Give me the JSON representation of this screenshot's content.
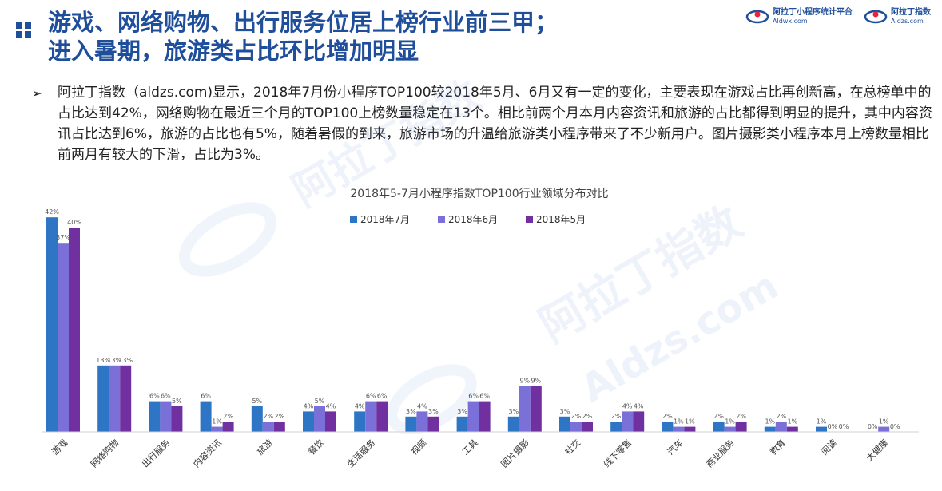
{
  "header": {
    "title_line1": "游戏、网络购物、出行服务位居上榜行业前三甲；",
    "title_line2": "进入暑期，旅游类占比环比增加明显",
    "logos": [
      {
        "name": "阿拉丁小程序统计平台",
        "domain": "Aldwx.com"
      },
      {
        "name": "阿拉丁指数",
        "domain": "Aldzs.com"
      }
    ]
  },
  "body": {
    "bullet": "➢",
    "description": "阿拉丁指数（aldzs.com)显示，2018年7月份小程序TOP100较2018年5月、6月又有一定的变化，主要表现在游戏占比再创新高，在总榜单中的占比达到42%，网络购物在最近三个月的TOP100上榜数量稳定在13个。相比前两个月本月内容资讯和旅游的占比都得到明显的提升，其中内容资讯占比达到6%，旅游的占比也有5%，随着暑假的到来，旅游市场的升温给旅游类小程序带来了不少新用户。图片摄影类小程序本月上榜数量相比前两月有较大的下滑，占比为3%。"
  },
  "watermark": {
    "text1": "阿拉丁指数",
    "text2": "Aldzs.com"
  },
  "chart_data": {
    "type": "bar",
    "title": "2018年5-7月小程序指数TOP100行业领域分布对比",
    "categories": [
      "游戏",
      "网络购物",
      "出行服务",
      "内容资讯",
      "旅游",
      "餐饮",
      "生活服务",
      "视频",
      "工具",
      "图片摄影",
      "社交",
      "线下零售",
      "汽车",
      "商业服务",
      "教育",
      "阅读",
      "大健康"
    ],
    "series": [
      {
        "name": "2018年7月",
        "color": "#2e75c5",
        "values": [
          42,
          13,
          6,
          6,
          5,
          4,
          4,
          3,
          3,
          3,
          3,
          2,
          2,
          2,
          1,
          1,
          0
        ]
      },
      {
        "name": "2018年6月",
        "color": "#7b6fd8",
        "values": [
          37,
          13,
          6,
          1,
          2,
          5,
          6,
          4,
          6,
          9,
          2,
          4,
          1,
          1,
          2,
          0,
          1
        ]
      },
      {
        "name": "2018年5月",
        "color": "#7030a0",
        "values": [
          40,
          13,
          5,
          2,
          2,
          4,
          6,
          3,
          6,
          9,
          2,
          4,
          1,
          2,
          1,
          0,
          0
        ]
      }
    ],
    "value_suffix": "%",
    "ylim": [
      0,
      45
    ],
    "grid": false,
    "legend_position": "top-center"
  }
}
